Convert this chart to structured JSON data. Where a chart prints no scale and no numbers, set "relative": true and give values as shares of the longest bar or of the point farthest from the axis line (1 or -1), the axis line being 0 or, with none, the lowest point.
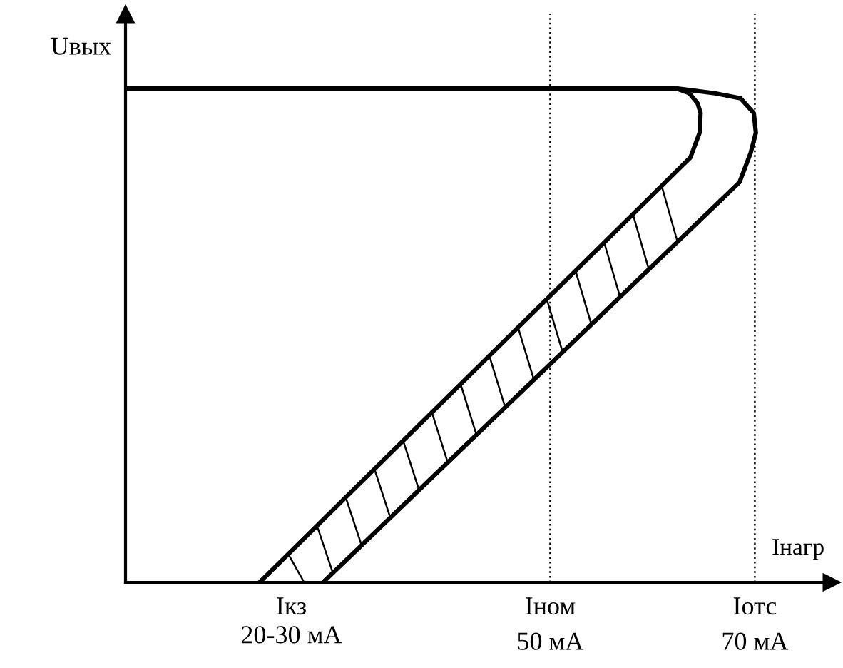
{
  "chart_data": {
    "type": "line",
    "relative": true,
    "xlabel": "Iнагр",
    "ylabel": "Uвых",
    "xlim": [
      8.5,
      77.5
    ],
    "xticks": [
      {
        "value": 50,
        "label": "50 мА"
      },
      {
        "value": 70,
        "label": "70 мА"
      }
    ],
    "annotations": [
      "Iкз\n20-30 мА"
    ],
    "series": [
      {
        "color": "#000000",
        "x": [
          27.8,
          68.5,
          69.6,
          70.1,
          69.9,
          68.6,
          66.1,
          62.3,
          8.5
        ],
        "values": [
          0,
          0.81,
          0.87,
          0.91,
          0.95,
          0.98,
          0.99,
          1,
          1
        ]
      },
      {
        "color": "#000000",
        "x": [
          21.6,
          63.7,
          64.6,
          64.7,
          64.4,
          63.6,
          62.3
        ],
        "values": [
          0,
          0.86,
          0.91,
          0.95,
          0.97,
          0.99,
          1
        ]
      }
    ],
    "ref_lines": [
      {
        "axis": "x",
        "value": 50,
        "label": "Iном",
        "color": "#000000",
        "line_style": "dotted"
      },
      {
        "axis": "x",
        "value": 70,
        "label": "Iотс",
        "color": "#000000",
        "line_style": "dotted"
      }
    ],
    "grid": false,
    "marker": "none",
    "line_style": "solid"
  }
}
